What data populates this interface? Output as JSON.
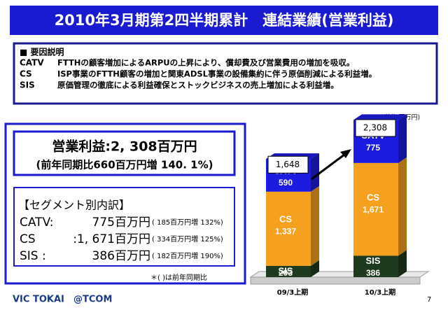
{
  "title": "2010年3月期第2四半期累計　連結業績(営業利益)",
  "factors": {
    "heading": "■ 要因説明",
    "rows": [
      [
        "CATV",
        "FTTHの顧客増加によるARPUの上昇により、償却費及び営業費用の増加を吸収。"
      ],
      [
        "CS",
        "ISP事業のFTTH顧客の増加と関東ADSL事業の設備集約に伴う原価削減による利益増。"
      ],
      [
        "SIS",
        "原価管理の徹底による利益確保とストックビジネスの売上増加による利益増。"
      ]
    ]
  },
  "summary": {
    "main": "営業利益:2, 308百万円",
    "sub": "(前年同期比660百万円増 140. 1%)"
  },
  "segments": {
    "heading": "【セグメント別内訳】",
    "rows": [
      [
        "CATV:",
        "775百万円",
        "( 185百万円増 132%)"
      ],
      [
        "CS",
        ":1, 671百万円",
        "( 334百万円増 125%)"
      ],
      [
        "SIS :",
        "386百万円",
        "( 182百万円増 190%)"
      ]
    ],
    "note": "＊( )は前年同期比"
  },
  "footer": {
    "company": "VIC TOKAI",
    "brand": "@TCOM",
    "page": "7"
  },
  "chart_data": {
    "type": "stacked_bar",
    "unit": "(単位:百万円)",
    "categories": [
      "09/3上期",
      "10/3上期"
    ],
    "series": [
      {
        "name": "SIS",
        "color": "#1e3a1e",
        "values": [
          203,
          386
        ]
      },
      {
        "name": "CS",
        "color": "#f5a01e",
        "values": [
          1337,
          1671
        ],
        "value_labels": [
          "1,337",
          "1,671"
        ]
      },
      {
        "name": "CATV",
        "color": "#1c1ce0",
        "values": [
          590,
          775
        ]
      }
    ],
    "totals": [
      {
        "value": 1648,
        "label": "1,648"
      },
      {
        "value": 2308,
        "label": "2,308"
      }
    ]
  }
}
